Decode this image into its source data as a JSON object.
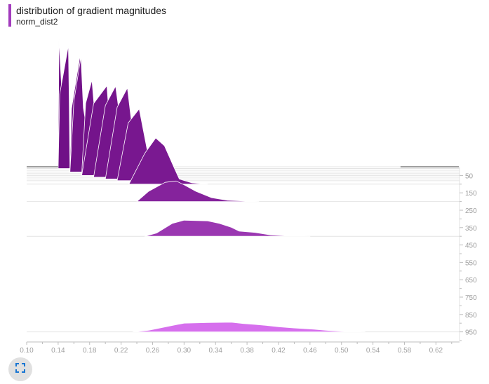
{
  "card": {
    "title": "distribution of gradient magnitudes",
    "subtitle": "norm_dist2",
    "accent_color": "#a23bbd",
    "expand_icon": "fullscreen-icon"
  },
  "chart_data": {
    "type": "area",
    "mode": "offset-histogram",
    "title": "distribution of gradient magnitudes",
    "subtitle": "norm_dist2",
    "x_ticks": [
      0.1,
      0.14,
      0.18,
      0.22,
      0.26,
      0.3,
      0.34,
      0.38,
      0.42,
      0.46,
      0.5,
      0.54,
      0.58,
      0.62
    ],
    "x_tick_labels": [
      "0.10",
      "0.14",
      "0.18",
      "0.22",
      "0.26",
      "0.30",
      "0.34",
      "0.38",
      "0.42",
      "0.46",
      "0.50",
      "0.54",
      "0.58",
      "0.62"
    ],
    "xlim": [
      0.1,
      0.65
    ],
    "y_ticks": [
      50,
      150,
      250,
      350,
      450,
      550,
      650,
      750,
      850,
      950
    ],
    "y_tick_labels": [
      "50",
      "150",
      "250",
      "350",
      "450",
      "550",
      "650",
      "750",
      "850",
      "950"
    ],
    "ylim": [
      0,
      1000
    ],
    "color_start": "#6f0f86",
    "color_end": "#db74f2",
    "series": [
      {
        "step": 0,
        "x": [
          0.14,
          0.141,
          0.15
        ],
        "values": [
          0,
          1,
          0
        ]
      },
      {
        "step": 10,
        "x": [
          0.14,
          0.142,
          0.153,
          0.154,
          0.155
        ],
        "values": [
          0,
          0.58,
          0.96,
          0.55,
          0
        ]
      },
      {
        "step": 20,
        "x": [
          0.155,
          0.157,
          0.168,
          0.17
        ],
        "values": [
          0,
          0.48,
          0.9,
          0
        ]
      },
      {
        "step": 30,
        "x": [
          0.155,
          0.16,
          0.169,
          0.172,
          0.185
        ],
        "values": [
          0,
          0.55,
          0.9,
          0.5,
          0
        ]
      },
      {
        "step": 40,
        "x": [
          0.17,
          0.175,
          0.183,
          0.187,
          0.188,
          0.19
        ],
        "values": [
          0,
          0.55,
          0.73,
          0.43,
          0.15,
          0
        ]
      },
      {
        "step": 50,
        "x": [
          0.17,
          0.185,
          0.202,
          0.21
        ],
        "values": [
          0,
          0.56,
          0.7,
          0
        ]
      },
      {
        "step": 60,
        "x": [
          0.185,
          0.2,
          0.213,
          0.222,
          0.225
        ],
        "values": [
          0,
          0.56,
          0.71,
          0.3,
          0
        ]
      },
      {
        "step": 70,
        "x": [
          0.2,
          0.215,
          0.228,
          0.236,
          0.238
        ],
        "values": [
          0,
          0.56,
          0.71,
          0.3,
          0
        ]
      },
      {
        "step": 80,
        "x": [
          0.215,
          0.229,
          0.243,
          0.255,
          0.258
        ],
        "values": [
          0,
          0.45,
          0.56,
          0.18,
          0
        ]
      },
      {
        "step": 100,
        "x": [
          0.23,
          0.25,
          0.264,
          0.275,
          0.288,
          0.294,
          0.31,
          0.33
        ],
        "values": [
          0,
          0.24,
          0.36,
          0.3,
          0.12,
          0.04,
          0.01,
          0
        ]
      },
      {
        "step": 200,
        "x": [
          0.24,
          0.255,
          0.276,
          0.29,
          0.3,
          0.315,
          0.335,
          0.355,
          0.375,
          0.395
        ],
        "values": [
          0,
          0.08,
          0.15,
          0.16,
          0.13,
          0.08,
          0.03,
          0.01,
          0.005,
          0
        ]
      },
      {
        "step": 400,
        "x": [
          0.25,
          0.265,
          0.285,
          0.3,
          0.33,
          0.345,
          0.36,
          0.37,
          0.39,
          0.41,
          0.43,
          0.46
        ],
        "values": [
          0,
          0.025,
          0.1,
          0.125,
          0.12,
          0.1,
          0.07,
          0.04,
          0.03,
          0.01,
          0.004,
          0
        ]
      },
      {
        "step": 950,
        "x": [
          0.235,
          0.255,
          0.285,
          0.3,
          0.33,
          0.36,
          0.375,
          0.39,
          0.405,
          0.42,
          0.44,
          0.465,
          0.48,
          0.5,
          0.53
        ],
        "values": [
          0,
          0.012,
          0.05,
          0.068,
          0.072,
          0.075,
          0.065,
          0.058,
          0.05,
          0.04,
          0.03,
          0.02,
          0.012,
          0.005,
          0
        ]
      }
    ]
  }
}
